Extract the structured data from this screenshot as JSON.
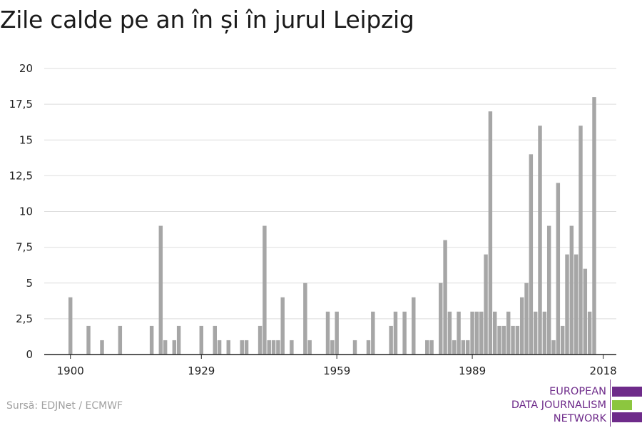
{
  "title": "Zile calde pe an în și în jurul Leipzig",
  "source": "Sursă: EDJNet / ECMWF",
  "logo": {
    "lines": [
      "EUROPEAN",
      "DATA JOURNALISM",
      "NETWORK"
    ],
    "text_color": "#6e2b8a",
    "bar_colors": [
      "#6e2b8a",
      "#8cc63f",
      "#6e2b8a"
    ]
  },
  "colors": {
    "bar": "#a6a6a6",
    "grid": "#dedede",
    "axis": "#222222",
    "tick_text": "#222222"
  },
  "chart_data": {
    "type": "bar",
    "title": "Zile calde pe an în și în jurul Leipzig",
    "xlabel": "",
    "ylabel": "",
    "ylim": [
      0,
      20
    ],
    "xlim": [
      1894,
      2021
    ],
    "grid": true,
    "y_ticks": [
      0,
      2.5,
      5,
      7.5,
      10,
      12.5,
      15,
      17.5,
      20
    ],
    "y_tick_labels": [
      "0",
      "2,5",
      "5",
      "7,5",
      "10",
      "12,5",
      "15",
      "17,5",
      "20"
    ],
    "x_ticks": [
      1900,
      1929,
      1959,
      1989,
      2018
    ],
    "x_tick_labels": [
      "1900",
      "1929",
      "1959",
      "1989",
      "2018"
    ],
    "x": [
      1900,
      1904,
      1907,
      1911,
      1918,
      1920,
      1921,
      1923,
      1924,
      1929,
      1932,
      1933,
      1935,
      1938,
      1939,
      1942,
      1943,
      1944,
      1945,
      1946,
      1947,
      1949,
      1952,
      1953,
      1957,
      1958,
      1959,
      1963,
      1966,
      1967,
      1971,
      1972,
      1974,
      1976,
      1979,
      1980,
      1982,
      1983,
      1984,
      1985,
      1986,
      1987,
      1988,
      1989,
      1990,
      1991,
      1992,
      1993,
      1994,
      1995,
      1996,
      1997,
      1998,
      1999,
      2000,
      2001,
      2002,
      2003,
      2004,
      2005,
      2006,
      2007,
      2008,
      2009,
      2010,
      2011,
      2012,
      2013,
      2014,
      2015,
      2016,
      2017,
      2018
    ],
    "values": [
      4,
      2,
      1,
      2,
      2,
      9,
      1,
      1,
      2,
      2,
      2,
      1,
      1,
      1,
      1,
      2,
      9,
      1,
      1,
      1,
      4,
      1,
      5,
      1,
      3,
      1,
      3,
      1,
      1,
      3,
      2,
      3,
      3,
      4,
      1,
      1,
      5,
      8,
      3,
      1,
      3,
      1,
      1,
      3,
      3,
      3,
      7,
      17,
      3,
      2,
      2,
      3,
      2,
      2,
      4,
      5,
      14,
      3,
      16,
      3,
      9,
      1,
      12,
      2,
      7,
      9,
      7,
      16,
      6,
      3,
      18,
      0,
      0
    ]
  }
}
